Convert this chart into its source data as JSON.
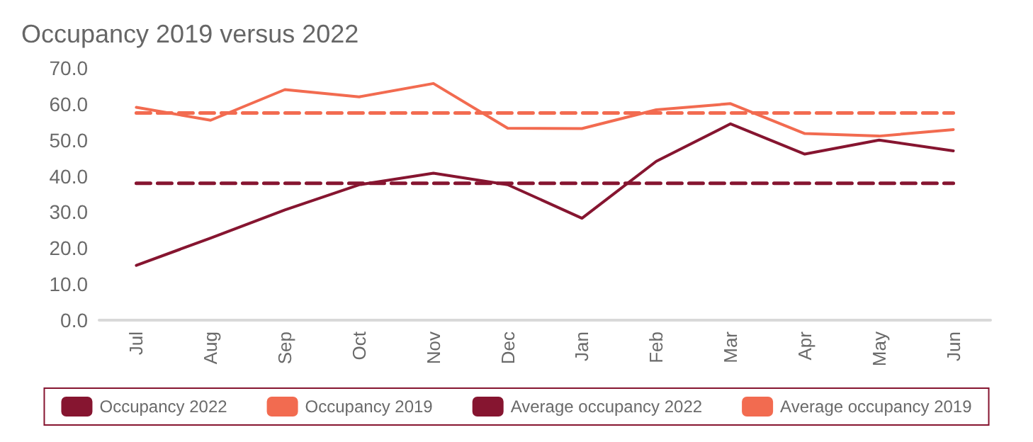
{
  "chart_data": {
    "type": "line",
    "title": "Occupancy 2019 versus 2022",
    "categories": [
      "Jul",
      "Aug",
      "Sep",
      "Oct",
      "Nov",
      "Dec",
      "Jan",
      "Feb",
      "Mar",
      "Apr",
      "May",
      "Jun"
    ],
    "series": [
      {
        "name": "Occupancy 2022",
        "color": "#861530",
        "values": [
          15.2,
          22.8,
          30.6,
          37.6,
          40.8,
          37.6,
          28.3,
          44.1,
          54.5,
          46.1,
          50.0,
          47.0
        ]
      },
      {
        "name": "Occupancy 2019",
        "color": "#f26b50",
        "values": [
          59.1,
          55.5,
          64.0,
          62.0,
          65.7,
          53.3,
          53.2,
          58.4,
          60.1,
          51.8,
          51.1,
          52.9
        ]
      },
      {
        "name": "Average occupancy 2022",
        "color": "#861530",
        "line_style": "dashed",
        "values": [
          38.0,
          38.0,
          38.0,
          38.0,
          38.0,
          38.0,
          38.0,
          38.0,
          38.0,
          38.0,
          38.0,
          38.0
        ]
      },
      {
        "name": "Average occupancy 2019",
        "color": "#f26b50",
        "line_style": "dashed",
        "values": [
          57.5,
          57.5,
          57.5,
          57.5,
          57.5,
          57.5,
          57.5,
          57.5,
          57.5,
          57.5,
          57.5,
          57.5
        ]
      }
    ],
    "ylim": [
      0,
      70
    ],
    "yticks": [
      {
        "value": 0,
        "label": "0.0"
      },
      {
        "value": 10,
        "label": "10.0"
      },
      {
        "value": 20,
        "label": "20.0"
      },
      {
        "value": 30,
        "label": "30.0"
      },
      {
        "value": 40,
        "label": "40.0"
      },
      {
        "value": 50,
        "label": "50.0"
      },
      {
        "value": 60,
        "label": "60.0"
      },
      {
        "value": 70,
        "label": "70.0"
      }
    ],
    "grid": false,
    "legend": "bottom",
    "marker": "none",
    "line_style": "solid"
  }
}
